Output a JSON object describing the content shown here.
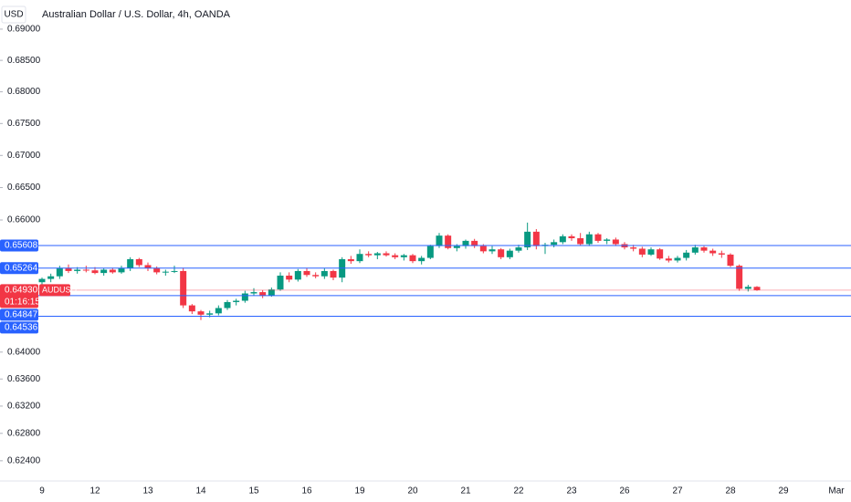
{
  "chart_data": {
    "type": "candlestick",
    "currency": "USD",
    "title": "Australian Dollar / U.S. Dollar, 4h, OANDA",
    "log": true,
    "ylim": [
      0.6212,
      0.6947
    ],
    "yticks": [
      {
        "value": 0.69,
        "label": "0.69000"
      },
      {
        "value": 0.685,
        "label": "0.68500"
      },
      {
        "value": 0.68,
        "label": "0.68000"
      },
      {
        "value": 0.675,
        "label": "0.67500"
      },
      {
        "value": 0.67,
        "label": "0.67000"
      },
      {
        "value": 0.665,
        "label": "0.66500"
      },
      {
        "value": 0.66,
        "label": "0.66000"
      },
      {
        "value": 0.64,
        "label": "0.64000"
      },
      {
        "value": 0.636,
        "label": "0.63600"
      },
      {
        "value": 0.632,
        "label": "0.63200"
      },
      {
        "value": 0.628,
        "label": "0.62800"
      },
      {
        "value": 0.624,
        "label": "0.62400"
      }
    ],
    "categories": [
      "9",
      null,
      null,
      null,
      null,
      null,
      "12",
      null,
      null,
      null,
      null,
      null,
      "13",
      null,
      null,
      null,
      null,
      null,
      "14",
      null,
      null,
      null,
      null,
      null,
      "15",
      null,
      null,
      null,
      null,
      null,
      "16",
      null,
      null,
      null,
      null,
      null,
      "19",
      null,
      null,
      null,
      null,
      null,
      "20",
      null,
      null,
      null,
      null,
      null,
      "21",
      null,
      null,
      null,
      null,
      null,
      "22",
      null,
      null,
      null,
      null,
      null,
      "23",
      null,
      null,
      null,
      null,
      null,
      "26",
      null,
      null,
      null,
      null,
      null,
      "27",
      null,
      null,
      null,
      null,
      null,
      "28",
      null,
      null,
      null,
      null,
      null,
      "29",
      null,
      null,
      null,
      null,
      null,
      "Mar"
    ],
    "up_color": "#089981",
    "down_color": "#f23645",
    "open": [
      0.6505,
      0.651,
      0.6514,
      0.6526,
      0.6522,
      0.6524,
      0.6523,
      0.6519,
      0.6524,
      0.652,
      0.6526,
      0.654,
      0.6531,
      0.6526,
      0.652,
      0.6521,
      0.6522,
      0.647,
      0.6461,
      0.6456,
      0.6458,
      0.6466,
      0.6475,
      0.6477,
      0.6488,
      0.649,
      0.6485,
      0.6494,
      0.6515,
      0.6509,
      0.6522,
      0.6516,
      0.6514,
      0.6522,
      0.6512,
      0.654,
      0.6537,
      0.6548,
      0.6546,
      0.6549,
      0.6546,
      0.6543,
      0.6546,
      0.6537,
      0.6542,
      0.656,
      0.6576,
      0.6557,
      0.656,
      0.6568,
      0.656,
      0.6552,
      0.6555,
      0.6543,
      0.6553,
      0.6558,
      0.6582,
      0.656,
      0.6562,
      0.6566,
      0.6575,
      0.6572,
      0.6563,
      0.6578,
      0.6568,
      0.657,
      0.6563,
      0.6558,
      0.6556,
      0.6547,
      0.6555,
      0.6541,
      0.6538,
      0.6542,
      0.655,
      0.6558,
      0.6553,
      0.6549,
      0.6547,
      0.653,
      0.6495,
      0.6498,
      null,
      null,
      null,
      null,
      null,
      null,
      null,
      null,
      null
    ],
    "high": [
      0.6512,
      0.6518,
      0.653,
      0.6532,
      0.6528,
      0.653,
      0.6528,
      0.6526,
      0.6527,
      0.653,
      0.6543,
      0.6542,
      0.6535,
      0.6529,
      0.6524,
      0.653,
      0.6527,
      0.6472,
      0.6463,
      0.6462,
      0.647,
      0.6478,
      0.648,
      0.6492,
      0.6496,
      0.6493,
      0.6497,
      0.652,
      0.652,
      0.6525,
      0.6526,
      0.652,
      0.6526,
      0.6524,
      0.6543,
      0.6545,
      0.6555,
      0.6552,
      0.6551,
      0.6552,
      0.6549,
      0.6548,
      0.6548,
      0.6545,
      0.6562,
      0.658,
      0.6578,
      0.6563,
      0.657,
      0.6571,
      0.6563,
      0.656,
      0.6557,
      0.6556,
      0.6562,
      0.6596,
      0.6586,
      0.6565,
      0.657,
      0.6578,
      0.6578,
      0.658,
      0.6582,
      0.658,
      0.6572,
      0.6573,
      0.6566,
      0.6562,
      0.6559,
      0.6558,
      0.6557,
      0.6545,
      0.6545,
      0.6554,
      0.6562,
      0.656,
      0.6556,
      0.6553,
      0.6549,
      0.6532,
      0.6501,
      0.6499,
      null,
      null,
      null,
      null,
      null,
      null,
      null,
      null,
      null
    ],
    "low": [
      0.65,
      0.6505,
      0.651,
      0.6519,
      0.6518,
      0.652,
      0.6517,
      0.6515,
      0.6518,
      0.6518,
      0.6522,
      0.6528,
      0.6522,
      0.6517,
      0.6515,
      0.6519,
      0.6466,
      0.6457,
      0.6448,
      0.6452,
      0.6455,
      0.6463,
      0.647,
      0.6474,
      0.6485,
      0.6481,
      0.6483,
      0.6492,
      0.6505,
      0.6506,
      0.6513,
      0.6511,
      0.651,
      0.6508,
      0.6505,
      0.6533,
      0.6534,
      0.6543,
      0.654,
      0.6544,
      0.654,
      0.6538,
      0.6534,
      0.6532,
      0.654,
      0.6557,
      0.6555,
      0.6552,
      0.6556,
      0.6557,
      0.6549,
      0.6548,
      0.654,
      0.654,
      0.655,
      0.6554,
      0.6555,
      0.6548,
      0.6558,
      0.6563,
      0.6568,
      0.6561,
      0.656,
      0.6565,
      0.6563,
      0.656,
      0.6555,
      0.6552,
      0.6543,
      0.6545,
      0.6539,
      0.6535,
      0.6535,
      0.6538,
      0.6547,
      0.655,
      0.6545,
      0.6542,
      0.6528,
      0.6492,
      0.6491,
      0.6492,
      null,
      null,
      null,
      null,
      null,
      null,
      null,
      null,
      null
    ],
    "close": [
      0.651,
      0.6514,
      0.6526,
      0.6522,
      0.6524,
      0.6523,
      0.6519,
      0.6524,
      0.652,
      0.6526,
      0.654,
      0.6531,
      0.6526,
      0.652,
      0.6521,
      0.6522,
      0.647,
      0.6461,
      0.6456,
      0.6458,
      0.6466,
      0.6475,
      0.6477,
      0.6488,
      0.649,
      0.6485,
      0.6494,
      0.6515,
      0.6509,
      0.6522,
      0.6516,
      0.6514,
      0.6522,
      0.6512,
      0.654,
      0.6537,
      0.6548,
      0.6546,
      0.6549,
      0.6546,
      0.6543,
      0.6546,
      0.6537,
      0.6542,
      0.656,
      0.6576,
      0.6557,
      0.656,
      0.6568,
      0.656,
      0.6552,
      0.6555,
      0.6543,
      0.6553,
      0.6558,
      0.6582,
      0.656,
      0.6562,
      0.6566,
      0.6575,
      0.6572,
      0.6563,
      0.6578,
      0.6568,
      0.657,
      0.6563,
      0.6558,
      0.6556,
      0.6547,
      0.6555,
      0.6541,
      0.6538,
      0.6542,
      0.655,
      0.6558,
      0.6553,
      0.6549,
      0.6547,
      0.653,
      0.6495,
      0.6498,
      0.6493,
      null,
      null,
      null,
      null,
      null,
      null,
      null,
      null,
      null
    ],
    "horizontal_lines": [
      0.65608,
      0.65264,
      0.64847,
      0.64536
    ],
    "line_color": "#2962ff",
    "last_price": {
      "value": 0.6493,
      "label": "0.64930"
    },
    "symbol": "AUDUSD",
    "countdown": "01:16:15"
  }
}
